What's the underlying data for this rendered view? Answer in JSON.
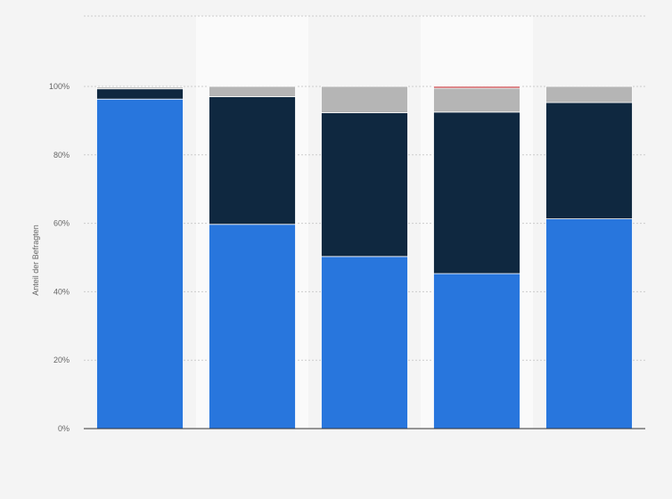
{
  "chart_data": {
    "type": "bar",
    "stacked": true,
    "categories": [
      "",
      "",
      "",
      "",
      ""
    ],
    "series": [
      {
        "color": "#2876dd",
        "values": [
          96.3,
          59.7,
          50.3,
          45.3,
          61.3
        ]
      },
      {
        "color": "#0f2840",
        "values": [
          3.0,
          37.3,
          42.0,
          47.2,
          34.0
        ]
      },
      {
        "color": "#b5b5b5",
        "values": [
          0.5,
          3.0,
          7.7,
          7.0,
          4.7
        ]
      },
      {
        "color": "#c0282d",
        "values": [
          0.0,
          0.0,
          0.0,
          0.5,
          0.0
        ]
      }
    ],
    "title": "",
    "xlabel": "",
    "ylabel": "Anteil der Befragten",
    "ylim": [
      0,
      100
    ],
    "yticks": [
      0,
      20,
      40,
      60,
      80,
      100
    ],
    "ytick_labels": [
      "0%",
      "20%",
      "40%",
      "60%",
      "80%",
      "100%"
    ],
    "grid": true,
    "alternating_column_shading": true,
    "colors": {
      "background": "#f4f4f4",
      "column_shade": "#fafafa",
      "grid": "#cccccc",
      "axis": "#333333"
    }
  }
}
